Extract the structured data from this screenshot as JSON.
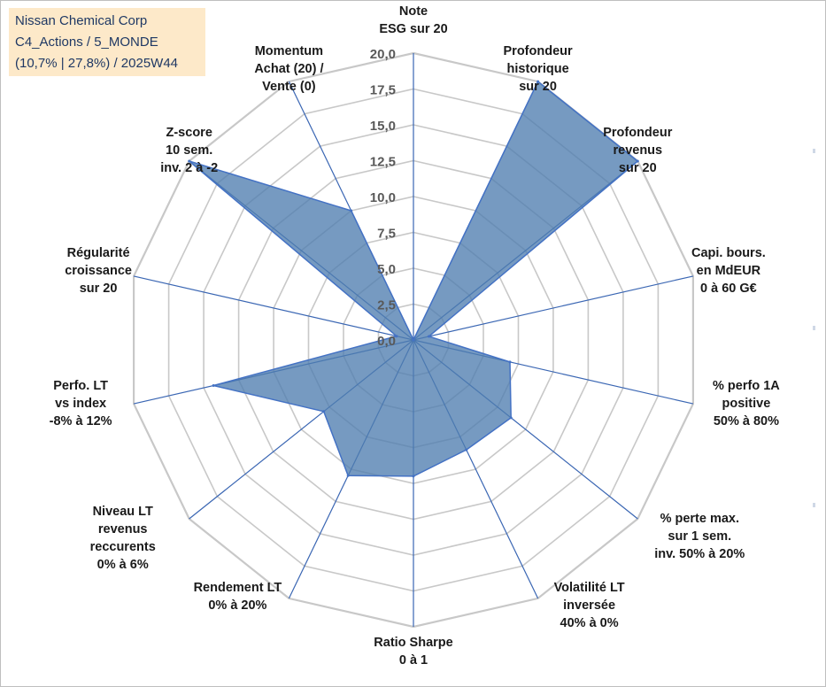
{
  "header": {
    "line1": "Nissan Chemical Corp",
    "line2": "C4_Actions / 5_MONDE",
    "line3": "(10,7% | 27,8%) / 2025W44"
  },
  "colors": {
    "fill": "#4f7db0",
    "stroke": "#4472c4",
    "grid": "#c8c8c8",
    "spoke": "#3a66b3"
  },
  "chart_data": {
    "type": "radar",
    "title": "Nissan Chemical Corp",
    "rmin": 0,
    "rmax": 20,
    "rticks": [
      "0,0",
      "2,5",
      "5,0",
      "7,5",
      "10,0",
      "12,5",
      "15,0",
      "17,5",
      "20,0"
    ],
    "categories": [
      [
        "Note",
        "ESG sur 20"
      ],
      [
        "Profondeur",
        "historique",
        "sur 20"
      ],
      [
        "Profondeur",
        "revenus",
        "sur 20"
      ],
      [
        "Capi. bours.",
        "en MdEUR",
        "0 à 60 G€"
      ],
      [
        "% perfo 1A",
        "positive",
        "50% à 80%"
      ],
      [
        "% perte max.",
        "sur 1 sem.",
        "inv. 50% à 20%"
      ],
      [
        "Volatilité LT",
        "inversée",
        "40% à 0%"
      ],
      [
        "Ratio Sharpe",
        "0 à 1"
      ],
      [
        "Rendement LT",
        "0% à 20%"
      ],
      [
        "Niveau LT",
        "revenus",
        "reccurents",
        "0% à 6%"
      ],
      [
        "Perfo. LT",
        "vs index",
        "-8% à 12%"
      ],
      [
        "Régularité",
        "croissance",
        "sur 20"
      ],
      [
        "Z-score",
        "10 sem.",
        "inv. 2 à -2"
      ],
      [
        "Momentum",
        "Achat (20) /",
        "Vente (0)"
      ]
    ],
    "series": [
      {
        "name": "Nissan Chemical Corp",
        "values": [
          0,
          20,
          20,
          1.1,
          6.9,
          8.7,
          8.5,
          9.5,
          10.5,
          8.0,
          14.3,
          1.2,
          20,
          10.0
        ]
      }
    ]
  }
}
